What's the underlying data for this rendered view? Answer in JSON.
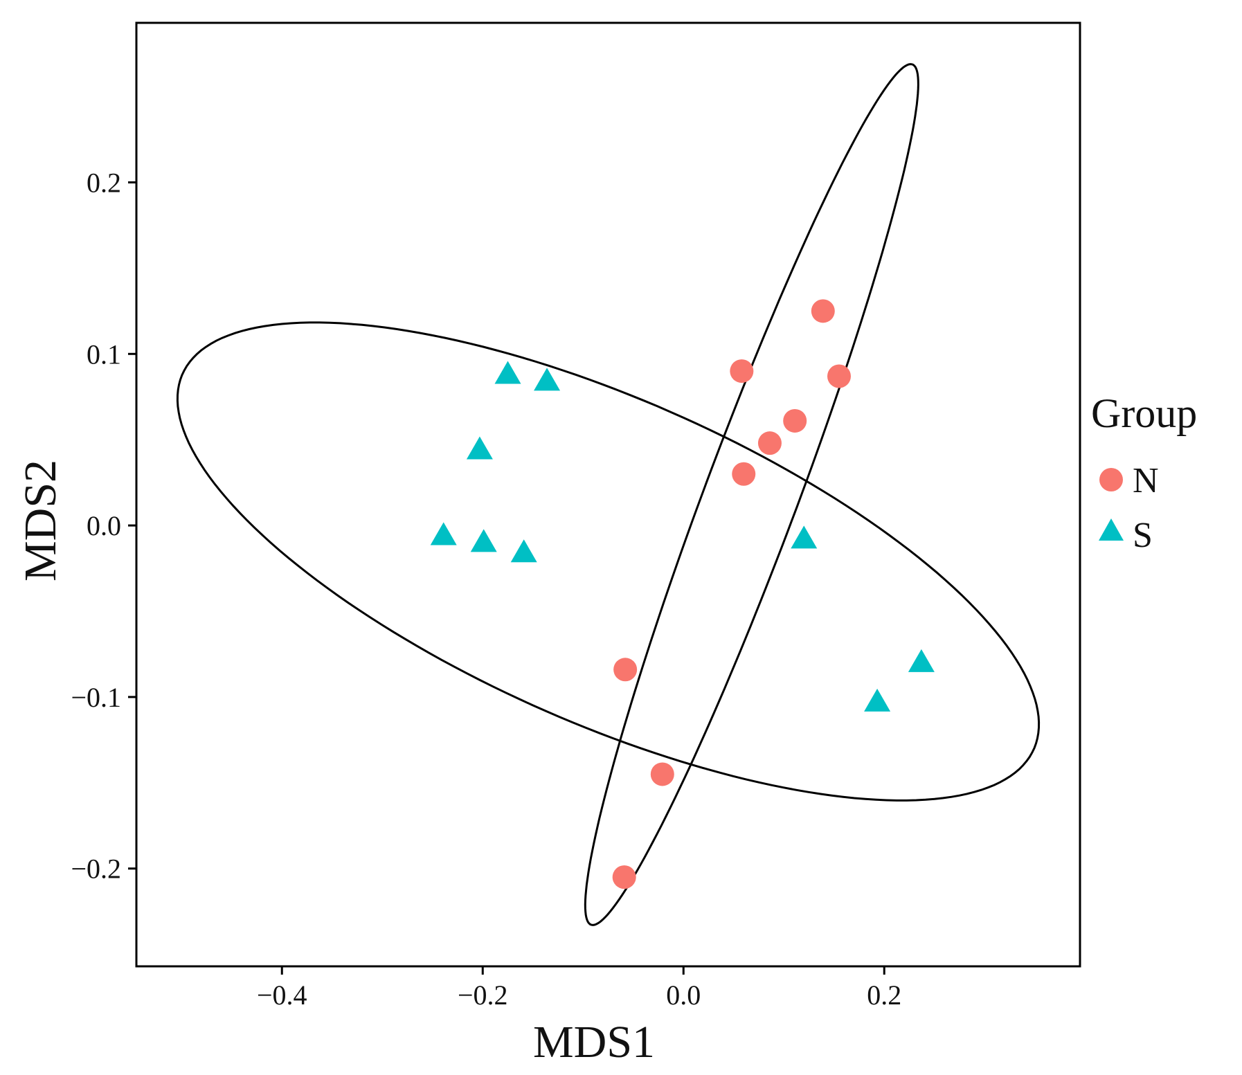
{
  "chart_data": {
    "type": "scatter",
    "title": "",
    "xlabel": "MDS1",
    "ylabel": "MDS2",
    "xlim": [
      -0.545,
      0.395
    ],
    "ylim": [
      -0.257,
      0.293
    ],
    "x_ticks": [
      -0.4,
      -0.2,
      0.0,
      0.2
    ],
    "x_tick_labels": [
      "−0.4",
      "−0.2",
      "0.0",
      "0.2"
    ],
    "y_ticks": [
      -0.2,
      -0.1,
      0.0,
      0.1,
      0.2
    ],
    "y_tick_labels": [
      "−0.2",
      "−0.1",
      "0.0",
      "0.1",
      "0.2"
    ],
    "grid": false,
    "legend": {
      "title": "Group",
      "position": "right",
      "entries": [
        {
          "label": "N",
          "shape": "circle",
          "color": "#F8766D"
        },
        {
          "label": "S",
          "shape": "triangle",
          "color": "#00BFC4"
        }
      ]
    },
    "series": [
      {
        "name": "N",
        "marker": "circle",
        "color": "#F8766D",
        "points": [
          {
            "x": 0.139,
            "y": 0.125
          },
          {
            "x": 0.058,
            "y": 0.09
          },
          {
            "x": 0.155,
            "y": 0.087
          },
          {
            "x": 0.111,
            "y": 0.061
          },
          {
            "x": 0.086,
            "y": 0.048
          },
          {
            "x": 0.06,
            "y": 0.03
          },
          {
            "x": -0.058,
            "y": -0.084
          },
          {
            "x": -0.021,
            "y": -0.145
          },
          {
            "x": -0.059,
            "y": -0.205
          }
        ]
      },
      {
        "name": "S",
        "marker": "triangle",
        "color": "#00BFC4",
        "points": [
          {
            "x": -0.175,
            "y": 0.087
          },
          {
            "x": -0.136,
            "y": 0.083
          },
          {
            "x": -0.203,
            "y": 0.043
          },
          {
            "x": -0.239,
            "y": -0.007
          },
          {
            "x": -0.199,
            "y": -0.011
          },
          {
            "x": -0.159,
            "y": -0.017
          },
          {
            "x": 0.12,
            "y": -0.009
          },
          {
            "x": 0.193,
            "y": -0.104
          },
          {
            "x": 0.237,
            "y": -0.081
          }
        ]
      }
    ],
    "ellipses": [
      {
        "group": "S",
        "color": "#000000",
        "center": [
          -0.075,
          -0.021
        ],
        "major_endpoints": [
          [
            -0.508,
            0.1
          ],
          [
            0.349,
            -0.1
          ]
        ],
        "semi_minor_vector": [
          0.022,
          0.097
        ]
      },
      {
        "group": "N",
        "color": "#000000",
        "center": [
          0.068,
          0.018
        ],
        "major_endpoints": [
          [
            0.229,
            0.268
          ],
          [
            -0.093,
            -0.233
          ]
        ],
        "semi_minor_vector": [
          0.04,
          -0.015
        ]
      }
    ]
  }
}
